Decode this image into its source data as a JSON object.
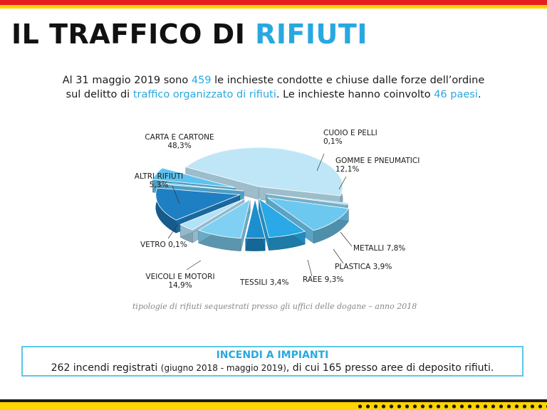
{
  "title": {
    "main": "IL TRAFFICO DI ",
    "highlight": "RIFIUTI"
  },
  "intro": {
    "line1_a": "Al 31 maggio 2019 sono ",
    "line1_num": "459",
    "line1_b": " le inchieste condotte e chiuse dalle forze dell’ordine",
    "line2_a": "sul delitto di ",
    "line2_hl": "traffico organizzato di rifiuti",
    "line2_b": ". Le inchieste hanno coinvolto ",
    "line2_num": "46 paesi",
    "line2_c": "."
  },
  "chart_data": {
    "type": "pie",
    "style": "3d-exploded",
    "slices": [
      {
        "name": "CARTA E CARTONE",
        "value": 48.3,
        "value_label": "48,3%"
      },
      {
        "name": "CUOIO E PELLI",
        "value": 0.1,
        "value_label": "0,1%"
      },
      {
        "name": "GOMME E PNEUMATICI",
        "value": 12.1,
        "value_label": "12,1%"
      },
      {
        "name": "METALLI",
        "value": 7.8,
        "value_label": "7,8%"
      },
      {
        "name": "PLASTICA",
        "value": 3.9,
        "value_label": "3,9%"
      },
      {
        "name": "RAEE",
        "value": 9.3,
        "value_label": "9,3%"
      },
      {
        "name": "TESSILI",
        "value": 3.4,
        "value_label": "3,4%"
      },
      {
        "name": "VEICOLI E MOTORI",
        "value": 14.9,
        "value_label": "14,9%"
      },
      {
        "name": "VETRO",
        "value": 0.1,
        "value_label": "0,1%"
      },
      {
        "name": "ALTRI RIFIUTI",
        "value": 5.3,
        "value_label": "5,3%"
      }
    ],
    "colors": [
      "#bfe6f7",
      "#8fd4f3",
      "#6cc8ef",
      "#2aa9e6",
      "#1c8fd0",
      "#7fd0f2",
      "#b3e2f6",
      "#1f7fc3",
      "#5fc2ee",
      "#5fc2ee"
    ],
    "caption": "tipologie di rifiuti sequestrati presso gli uffici delle dogane – anno 2018"
  },
  "box": {
    "title": "INCENDI A IMPIANTI",
    "text_a": "262 incendi registrati ",
    "text_small": "(giugno 2018 - maggio 2019)",
    "text_b": ", di cui 165 presso aree di deposito rifiuti."
  }
}
